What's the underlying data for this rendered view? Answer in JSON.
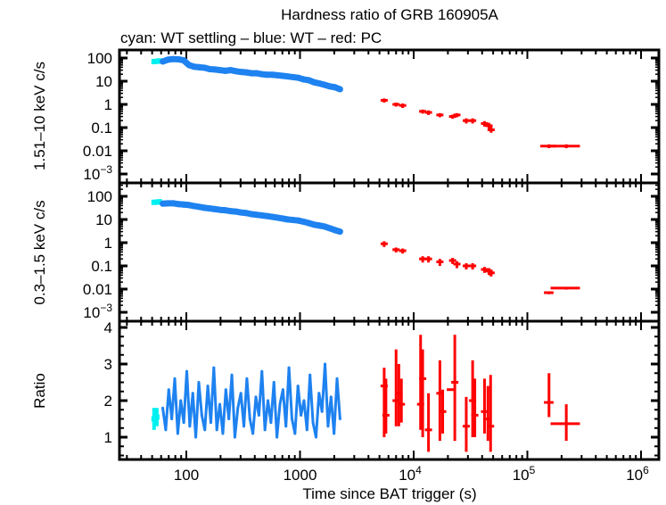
{
  "chart_data": {
    "type": "scatter",
    "title": "Hardness ratio of GRB 160905A",
    "subtitle": "cyan: WT settling – blue: WT – red: PC",
    "xlabel": "Time since BAT trigger (s)",
    "xscale": "log",
    "xlim": [
      25,
      1400000
    ],
    "xticks": [
      {
        "v": 100,
        "label": "100"
      },
      {
        "v": 1000,
        "label": "1000"
      },
      {
        "v": 10000,
        "label": "10",
        "exp": "4"
      },
      {
        "v": 100000,
        "label": "10",
        "exp": "5"
      },
      {
        "v": 1000000,
        "label": "10",
        "exp": "6"
      }
    ],
    "colors": {
      "cyan": "#00f0f0",
      "blue": "#1e82f0",
      "red": "#ff0000"
    },
    "panels": [
      {
        "name": "hard",
        "ylabel": "1.51–10 keV c/s",
        "yscale": "log",
        "ylim": [
          0.0004,
          300
        ],
        "yticks": [
          {
            "v": 100,
            "label": "100"
          },
          {
            "v": 10,
            "label": "10"
          },
          {
            "v": 1,
            "label": "1"
          },
          {
            "v": 0.1,
            "label": "0.1"
          },
          {
            "v": 0.01,
            "label": "0.01"
          },
          {
            "v": 0.001,
            "label": "10",
            "exp": "−3"
          }
        ],
        "cyan": [
          [
            52,
            70
          ],
          [
            55,
            72
          ],
          [
            58,
            75
          ]
        ],
        "blue_t_range": [
          62,
          2250
        ],
        "blue": [
          70,
          85,
          90,
          88,
          80,
          50,
          42,
          40,
          38,
          33,
          32,
          30,
          28,
          30,
          27,
          25,
          24,
          22,
          22,
          20,
          19,
          19,
          18,
          17,
          16,
          15,
          14,
          12,
          11,
          9,
          8,
          7,
          6,
          5.5,
          4.5
        ],
        "red": [
          [
            5500,
            1.5,
            1.2,
            1.8
          ],
          [
            7000,
            1.0,
            0.8,
            1.2
          ],
          [
            8000,
            0.9,
            0.7,
            1.1
          ],
          [
            12000,
            0.5,
            0.4,
            0.6
          ],
          [
            13500,
            0.45,
            0.35,
            0.55
          ],
          [
            17000,
            0.35,
            0.28,
            0.42
          ],
          [
            22000,
            0.3,
            0.24,
            0.36
          ],
          [
            24000,
            0.35,
            0.28,
            0.42
          ],
          [
            29000,
            0.2,
            0.15,
            0.25
          ],
          [
            33000,
            0.2,
            0.15,
            0.25
          ],
          [
            42000,
            0.15,
            0.11,
            0.19
          ],
          [
            46000,
            0.12,
            0.09,
            0.16
          ],
          [
            48000,
            0.08,
            0.06,
            0.11
          ]
        ],
        "red_late": [
          [
            155000,
            130000,
            180000,
            0.016,
            0.013,
            0.019
          ],
          [
            220000,
            160000,
            290000,
            0.016,
            0.013,
            0.019
          ]
        ]
      },
      {
        "name": "soft",
        "ylabel": "0.3–1.5 keV c/s",
        "yscale": "log",
        "ylim": [
          0.0004,
          300
        ],
        "yticks": [
          {
            "v": 100,
            "label": "100"
          },
          {
            "v": 10,
            "label": "10"
          },
          {
            "v": 1,
            "label": "1"
          },
          {
            "v": 0.1,
            "label": "0.1"
          },
          {
            "v": 0.01,
            "label": "0.01"
          },
          {
            "v": 0.001,
            "label": "10",
            "exp": "−3"
          }
        ],
        "cyan": [
          [
            52,
            55
          ],
          [
            55,
            56
          ],
          [
            58,
            58
          ]
        ],
        "blue_t_range": [
          62,
          2250
        ],
        "blue": [
          48,
          50,
          50,
          46,
          44,
          42,
          38,
          35,
          32,
          30,
          28,
          26,
          25,
          23,
          22,
          20,
          19,
          17,
          16,
          15,
          14,
          13,
          12,
          11,
          10,
          9.5,
          9,
          8,
          7,
          6,
          5.5,
          5,
          4.2,
          3.5,
          3
        ],
        "red": [
          [
            5500,
            0.9,
            0.65,
            1.15
          ],
          [
            7000,
            0.5,
            0.38,
            0.62
          ],
          [
            8000,
            0.45,
            0.34,
            0.56
          ],
          [
            12000,
            0.2,
            0.14,
            0.26
          ],
          [
            13500,
            0.2,
            0.14,
            0.26
          ],
          [
            17000,
            0.15,
            0.1,
            0.2
          ],
          [
            22000,
            0.17,
            0.12,
            0.22
          ],
          [
            24000,
            0.12,
            0.08,
            0.16
          ],
          [
            29000,
            0.1,
            0.07,
            0.13
          ],
          [
            33000,
            0.1,
            0.07,
            0.13
          ],
          [
            42000,
            0.07,
            0.05,
            0.09
          ],
          [
            46000,
            0.06,
            0.04,
            0.08
          ],
          [
            48000,
            0.05,
            0.035,
            0.07
          ]
        ],
        "red_late": [
          [
            155000,
            140000,
            170000,
            0.007,
            0.006,
            0.008
          ],
          [
            220000,
            160000,
            290000,
            0.011,
            0.0095,
            0.0125
          ]
        ]
      },
      {
        "name": "ratio",
        "ylabel": "Ratio",
        "yscale": "linear",
        "ylim": [
          0.39,
          4.17
        ],
        "yticks": [
          {
            "v": 1,
            "label": "1"
          },
          {
            "v": 2,
            "label": "2"
          },
          {
            "v": 3,
            "label": "3"
          },
          {
            "v": 4,
            "label": "4"
          }
        ],
        "cyan": [
          [
            52,
            1.5,
            1.2,
            1.8
          ],
          [
            55,
            1.55,
            1.3,
            1.8
          ]
        ],
        "blue_t_range": [
          62,
          2250
        ],
        "blue": [
          1.8,
          1.2,
          2.3,
          1.5,
          2.6,
          1.1,
          2.0,
          1.4,
          2.8,
          1.3,
          2.2,
          1.0,
          2.5,
          1.6,
          1.2,
          2.4,
          1.4,
          2.9,
          1.2,
          1.9,
          1.1,
          2.3,
          1.5,
          2.7,
          1.0,
          1.8,
          2.2,
          1.3,
          2.6,
          1.5,
          1.1,
          2.1,
          1.6,
          2.8,
          1.2,
          2.0,
          1.4,
          2.5,
          1.0,
          1.9,
          2.3,
          1.3,
          2.9,
          1.5,
          1.1,
          2.4,
          1.6,
          2.0,
          1.2,
          2.7,
          1.4,
          1.0,
          2.2,
          1.7,
          3.0,
          1.3,
          2.1,
          1.1,
          2.6,
          1.5
        ],
        "red": [
          [
            5500,
            2.4,
            1.0,
            2.9
          ],
          [
            5700,
            1.6,
            1.1,
            2.6
          ],
          [
            7000,
            2.0,
            1.3,
            3.4
          ],
          [
            7400,
            2.2,
            1.3,
            3.0
          ],
          [
            7800,
            1.9,
            1.4,
            2.6
          ],
          [
            11500,
            1.9,
            1.2,
            3.8
          ],
          [
            12000,
            2.6,
            1.0,
            3.4
          ],
          [
            13500,
            1.2,
            0.6,
            2.2
          ],
          [
            17000,
            2.2,
            0.9,
            3.1
          ],
          [
            18000,
            1.7,
            1.1,
            2.3
          ],
          [
            21000,
            2.3,
            2.3,
            2.3
          ],
          [
            23000,
            2.5,
            0.9,
            3.8
          ],
          [
            29000,
            1.3,
            0.6,
            2.1
          ],
          [
            33000,
            2.0,
            1.0,
            3.1
          ],
          [
            34500,
            1.6,
            1.0,
            2.6
          ],
          [
            42000,
            1.7,
            1.1,
            2.6
          ],
          [
            45000,
            1.5,
            0.9,
            2.4
          ],
          [
            47500,
            1.3,
            0.6,
            2.7
          ]
        ],
        "red_late": [
          [
            155000,
            140000,
            170000,
            1.95,
            1.55,
            2.75
          ],
          [
            220000,
            160000,
            290000,
            1.37,
            0.9,
            1.9
          ]
        ]
      }
    ]
  }
}
